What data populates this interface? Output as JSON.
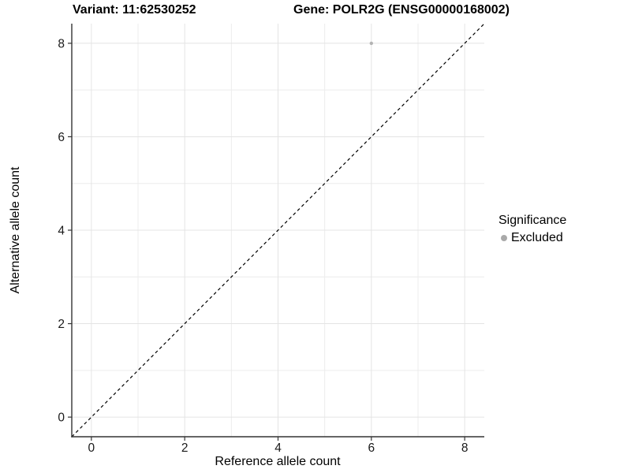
{
  "header": {
    "variant_title": "Variant: 11:62530252",
    "gene_title": "Gene: POLR2G (ENSG00000168002)"
  },
  "legend": {
    "title": "Significance",
    "items": [
      {
        "label": "Excluded",
        "color": "#a9a9a9"
      }
    ]
  },
  "colors": {
    "background": "#ffffff",
    "grid_major": "#e4e4e4",
    "grid_minor": "#ececec",
    "axis_line": "#333333",
    "tick_mark": "#333333",
    "tick_label": "#1a1a1a",
    "reference_line": "#000000",
    "point": "#b3b3b3"
  },
  "chart_data": {
    "type": "scatter",
    "title": "Variant: 11:62530252    Gene: POLR2G (ENSG00000168002)",
    "xlabel": "Reference allele count",
    "ylabel": "Alternative allele count",
    "xlim": [
      -0.42,
      8.42
    ],
    "ylim": [
      -0.42,
      8.42
    ],
    "x_ticks": [
      0,
      2,
      4,
      6,
      8
    ],
    "y_ticks": [
      0,
      2,
      4,
      6,
      8
    ],
    "x_minor_gridlines": [
      1,
      3,
      5,
      7
    ],
    "y_minor_gridlines": [
      1,
      3,
      5,
      7
    ],
    "grid": true,
    "legend_position": "right",
    "legend_title": "Significance",
    "series": [
      {
        "name": "Excluded",
        "color": "#b3b3b3",
        "points": [
          {
            "x": 6,
            "y": 8
          }
        ]
      }
    ],
    "reference_line": {
      "style": "dashed",
      "slope": 1,
      "intercept": 0,
      "color": "#000000"
    }
  }
}
